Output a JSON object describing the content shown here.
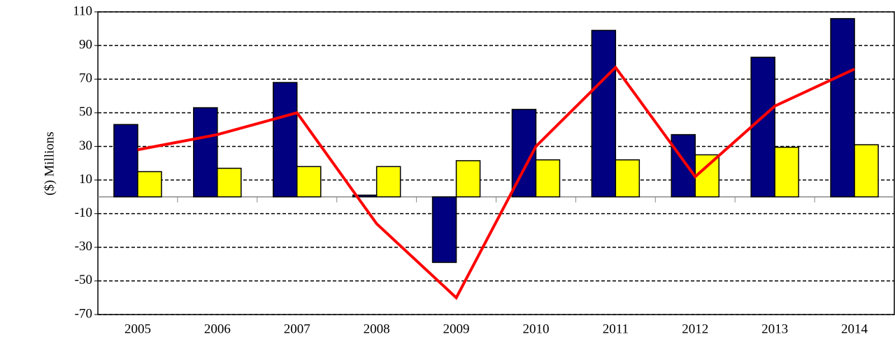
{
  "chart_data": {
    "type": "bar",
    "y_label": "($) Millions",
    "categories": [
      "2005",
      "2006",
      "2007",
      "2008",
      "2009",
      "2010",
      "2011",
      "2012",
      "2013",
      "2014"
    ],
    "series": [
      {
        "color": "#000080",
        "values": [
          43,
          53,
          68,
          1,
          -39,
          52,
          99,
          37,
          83,
          106
        ]
      },
      {
        "color": "#ffff00",
        "values": [
          15,
          17,
          18,
          18,
          21.5,
          22,
          22,
          25,
          29.5,
          31
        ]
      },
      {
        "type": "line",
        "color": "#ff0000",
        "values": [
          28,
          37,
          50,
          -16,
          -60,
          30,
          77,
          12,
          54,
          76
        ]
      }
    ],
    "ylim": [
      -70,
      110
    ],
    "yticks": [
      -70,
      -50,
      -30,
      -10,
      10,
      30,
      50,
      70,
      90,
      110
    ],
    "grid": true
  }
}
